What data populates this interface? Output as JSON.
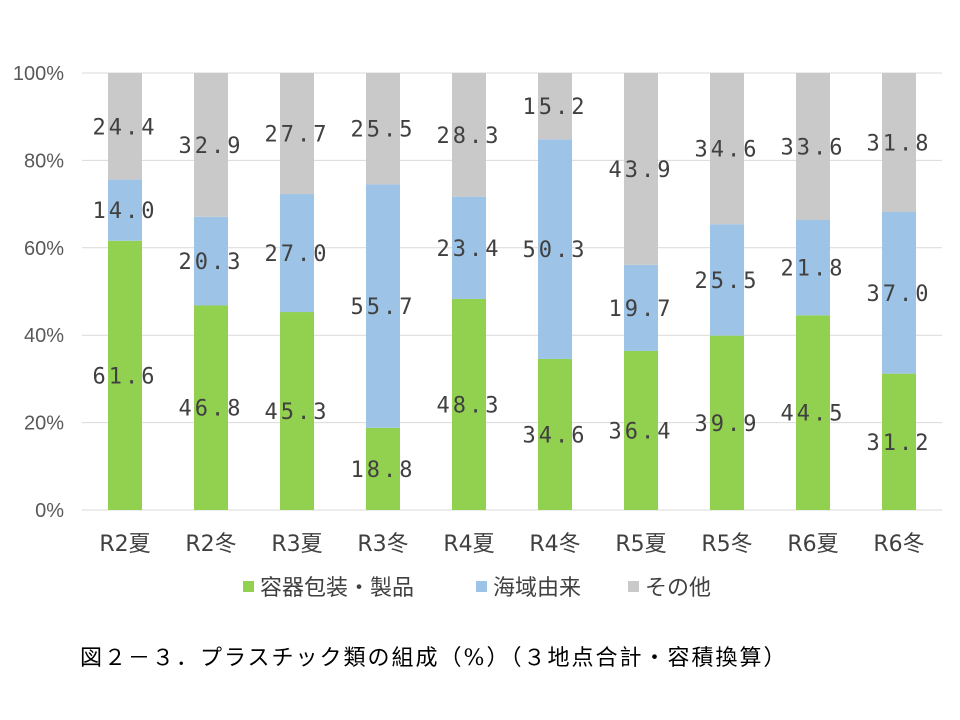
{
  "caption": "図２－３．プラスチック類の組成（%）（３地点合計・容積換算）",
  "colors": {
    "series1": "#92d050",
    "series2": "#9dc3e6",
    "series3": "#c9c9c9",
    "grid": "#d9d9d9"
  },
  "chart_data": {
    "type": "bar",
    "stacked": "percent",
    "title": "",
    "xlabel": "",
    "ylabel": "",
    "ylim": [
      0,
      100
    ],
    "yticks": [
      "0%",
      "20%",
      "40%",
      "60%",
      "80%",
      "100%"
    ],
    "grid": true,
    "legend_position": "bottom",
    "categories": [
      "R2夏",
      "R2冬",
      "R3夏",
      "R3冬",
      "R4夏",
      "R4冬",
      "R5夏",
      "R5冬",
      "R6夏",
      "R6冬"
    ],
    "series": [
      {
        "name": "容器包装・製品",
        "color": "#92d050",
        "values": [
          61.6,
          46.8,
          45.3,
          18.8,
          48.3,
          34.6,
          36.4,
          39.9,
          44.5,
          31.2
        ],
        "labels": [
          "61.6",
          "46.8",
          "45.3",
          "18.8",
          "48.3",
          "34.6",
          "36.4",
          "39.9",
          "44.5",
          "31.2"
        ]
      },
      {
        "name": "海域由来",
        "color": "#9dc3e6",
        "values": [
          14.0,
          20.3,
          27.0,
          55.7,
          23.4,
          50.3,
          19.7,
          25.5,
          21.8,
          37.0
        ],
        "labels": [
          "14.0",
          "20.3",
          "27.0",
          "55.7",
          "23.4",
          "50.3",
          "19.7",
          "25.5",
          "21.8",
          "37.0"
        ]
      },
      {
        "name": "その他",
        "color": "#c9c9c9",
        "values": [
          24.4,
          32.9,
          27.7,
          25.5,
          28.3,
          15.2,
          43.9,
          34.6,
          33.6,
          31.8
        ],
        "labels": [
          "24.4",
          "32.9",
          "27.7",
          "25.5",
          "28.3",
          "15.2",
          "43.9",
          "34.6",
          "33.6",
          "31.8"
        ]
      }
    ]
  }
}
